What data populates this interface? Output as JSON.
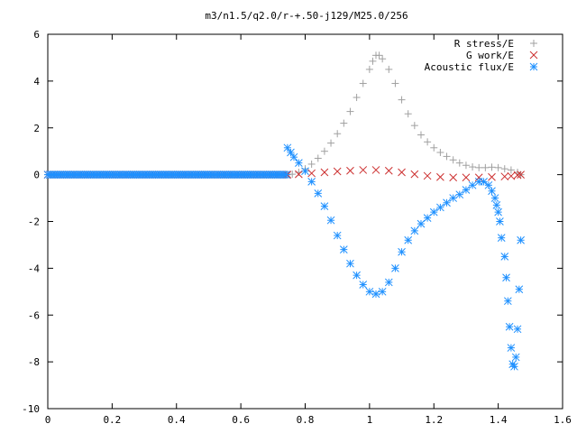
{
  "chart_data": {
    "type": "scatter",
    "title": "m3/n1.5/q2.0/r-+.50-j129/M25.0/256",
    "xlabel": "",
    "ylabel": "",
    "xlim": [
      0,
      1.6
    ],
    "ylim": [
      -10,
      6
    ],
    "x_ticks": [
      "0",
      "0.2",
      "0.4",
      "0.6",
      "0.8",
      "1",
      "1.2",
      "1.4",
      "1.6"
    ],
    "y_ticks": [
      "6",
      "4",
      "2",
      "0",
      "-2",
      "-4",
      "-6",
      "-8",
      "-10"
    ],
    "grid": false,
    "legend_position": "top-right",
    "series": [
      {
        "name": "R stress/E",
        "marker": "plus",
        "color": "#a0a0a0",
        "points": [
          [
            0.745,
            0.0
          ],
          [
            0.76,
            0.02
          ],
          [
            0.78,
            0.1
          ],
          [
            0.8,
            0.25
          ],
          [
            0.82,
            0.45
          ],
          [
            0.84,
            0.7
          ],
          [
            0.86,
            1.0
          ],
          [
            0.88,
            1.35
          ],
          [
            0.9,
            1.75
          ],
          [
            0.92,
            2.2
          ],
          [
            0.94,
            2.7
          ],
          [
            0.96,
            3.3
          ],
          [
            0.98,
            3.9
          ],
          [
            1.0,
            4.5
          ],
          [
            1.01,
            4.85
          ],
          [
            1.02,
            5.1
          ],
          [
            1.03,
            5.1
          ],
          [
            1.04,
            4.95
          ],
          [
            1.06,
            4.5
          ],
          [
            1.08,
            3.9
          ],
          [
            1.1,
            3.2
          ],
          [
            1.12,
            2.6
          ],
          [
            1.14,
            2.1
          ],
          [
            1.16,
            1.7
          ],
          [
            1.18,
            1.4
          ],
          [
            1.2,
            1.15
          ],
          [
            1.22,
            0.95
          ],
          [
            1.24,
            0.78
          ],
          [
            1.26,
            0.63
          ],
          [
            1.28,
            0.5
          ],
          [
            1.3,
            0.4
          ],
          [
            1.32,
            0.33
          ],
          [
            1.34,
            0.3
          ],
          [
            1.36,
            0.3
          ],
          [
            1.38,
            0.32
          ],
          [
            1.4,
            0.3
          ],
          [
            1.42,
            0.25
          ],
          [
            1.44,
            0.2
          ],
          [
            1.46,
            0.1
          ],
          [
            1.47,
            0.0
          ]
        ]
      },
      {
        "name": "G work/E",
        "marker": "cross",
        "color": "#cc3030",
        "points": [
          [
            0.745,
            0.0
          ],
          [
            0.78,
            0.02
          ],
          [
            0.82,
            0.06
          ],
          [
            0.86,
            0.1
          ],
          [
            0.9,
            0.14
          ],
          [
            0.94,
            0.17
          ],
          [
            0.98,
            0.2
          ],
          [
            1.02,
            0.2
          ],
          [
            1.06,
            0.17
          ],
          [
            1.1,
            0.1
          ],
          [
            1.14,
            0.02
          ],
          [
            1.18,
            -0.05
          ],
          [
            1.22,
            -0.1
          ],
          [
            1.26,
            -0.12
          ],
          [
            1.3,
            -0.12
          ],
          [
            1.34,
            -0.12
          ],
          [
            1.38,
            -0.1
          ],
          [
            1.42,
            -0.08
          ],
          [
            1.44,
            -0.06
          ],
          [
            1.46,
            -0.02
          ],
          [
            1.47,
            0.0
          ]
        ]
      },
      {
        "name": "Acoustic flux/E",
        "marker": "star",
        "color": "#1e90ff",
        "points": [
          [
            0.745,
            1.15
          ],
          [
            0.755,
            0.95
          ],
          [
            0.765,
            0.75
          ],
          [
            0.78,
            0.5
          ],
          [
            0.8,
            0.15
          ],
          [
            0.82,
            -0.3
          ],
          [
            0.84,
            -0.8
          ],
          [
            0.86,
            -1.35
          ],
          [
            0.88,
            -1.95
          ],
          [
            0.9,
            -2.6
          ],
          [
            0.92,
            -3.2
          ],
          [
            0.94,
            -3.8
          ],
          [
            0.96,
            -4.3
          ],
          [
            0.98,
            -4.7
          ],
          [
            1.0,
            -5.0
          ],
          [
            1.02,
            -5.1
          ],
          [
            1.04,
            -5.0
          ],
          [
            1.06,
            -4.6
          ],
          [
            1.08,
            -4.0
          ],
          [
            1.1,
            -3.3
          ],
          [
            1.12,
            -2.8
          ],
          [
            1.14,
            -2.4
          ],
          [
            1.16,
            -2.1
          ],
          [
            1.18,
            -1.85
          ],
          [
            1.2,
            -1.6
          ],
          [
            1.22,
            -1.4
          ],
          [
            1.24,
            -1.2
          ],
          [
            1.26,
            -1.0
          ],
          [
            1.28,
            -0.85
          ],
          [
            1.3,
            -0.65
          ],
          [
            1.32,
            -0.45
          ],
          [
            1.34,
            -0.3
          ],
          [
            1.355,
            -0.3
          ],
          [
            1.37,
            -0.45
          ],
          [
            1.38,
            -0.7
          ],
          [
            1.39,
            -1.0
          ],
          [
            1.395,
            -1.3
          ],
          [
            1.4,
            -1.6
          ],
          [
            1.405,
            -2.0
          ],
          [
            1.41,
            -2.7
          ],
          [
            1.42,
            -3.5
          ],
          [
            1.425,
            -4.4
          ],
          [
            1.43,
            -5.4
          ],
          [
            1.435,
            -6.5
          ],
          [
            1.44,
            -7.4
          ],
          [
            1.445,
            -8.1
          ],
          [
            1.45,
            -8.2
          ],
          [
            1.455,
            -7.8
          ],
          [
            1.46,
            -6.6
          ],
          [
            1.465,
            -4.9
          ],
          [
            1.47,
            -2.8
          ]
        ]
      }
    ]
  }
}
